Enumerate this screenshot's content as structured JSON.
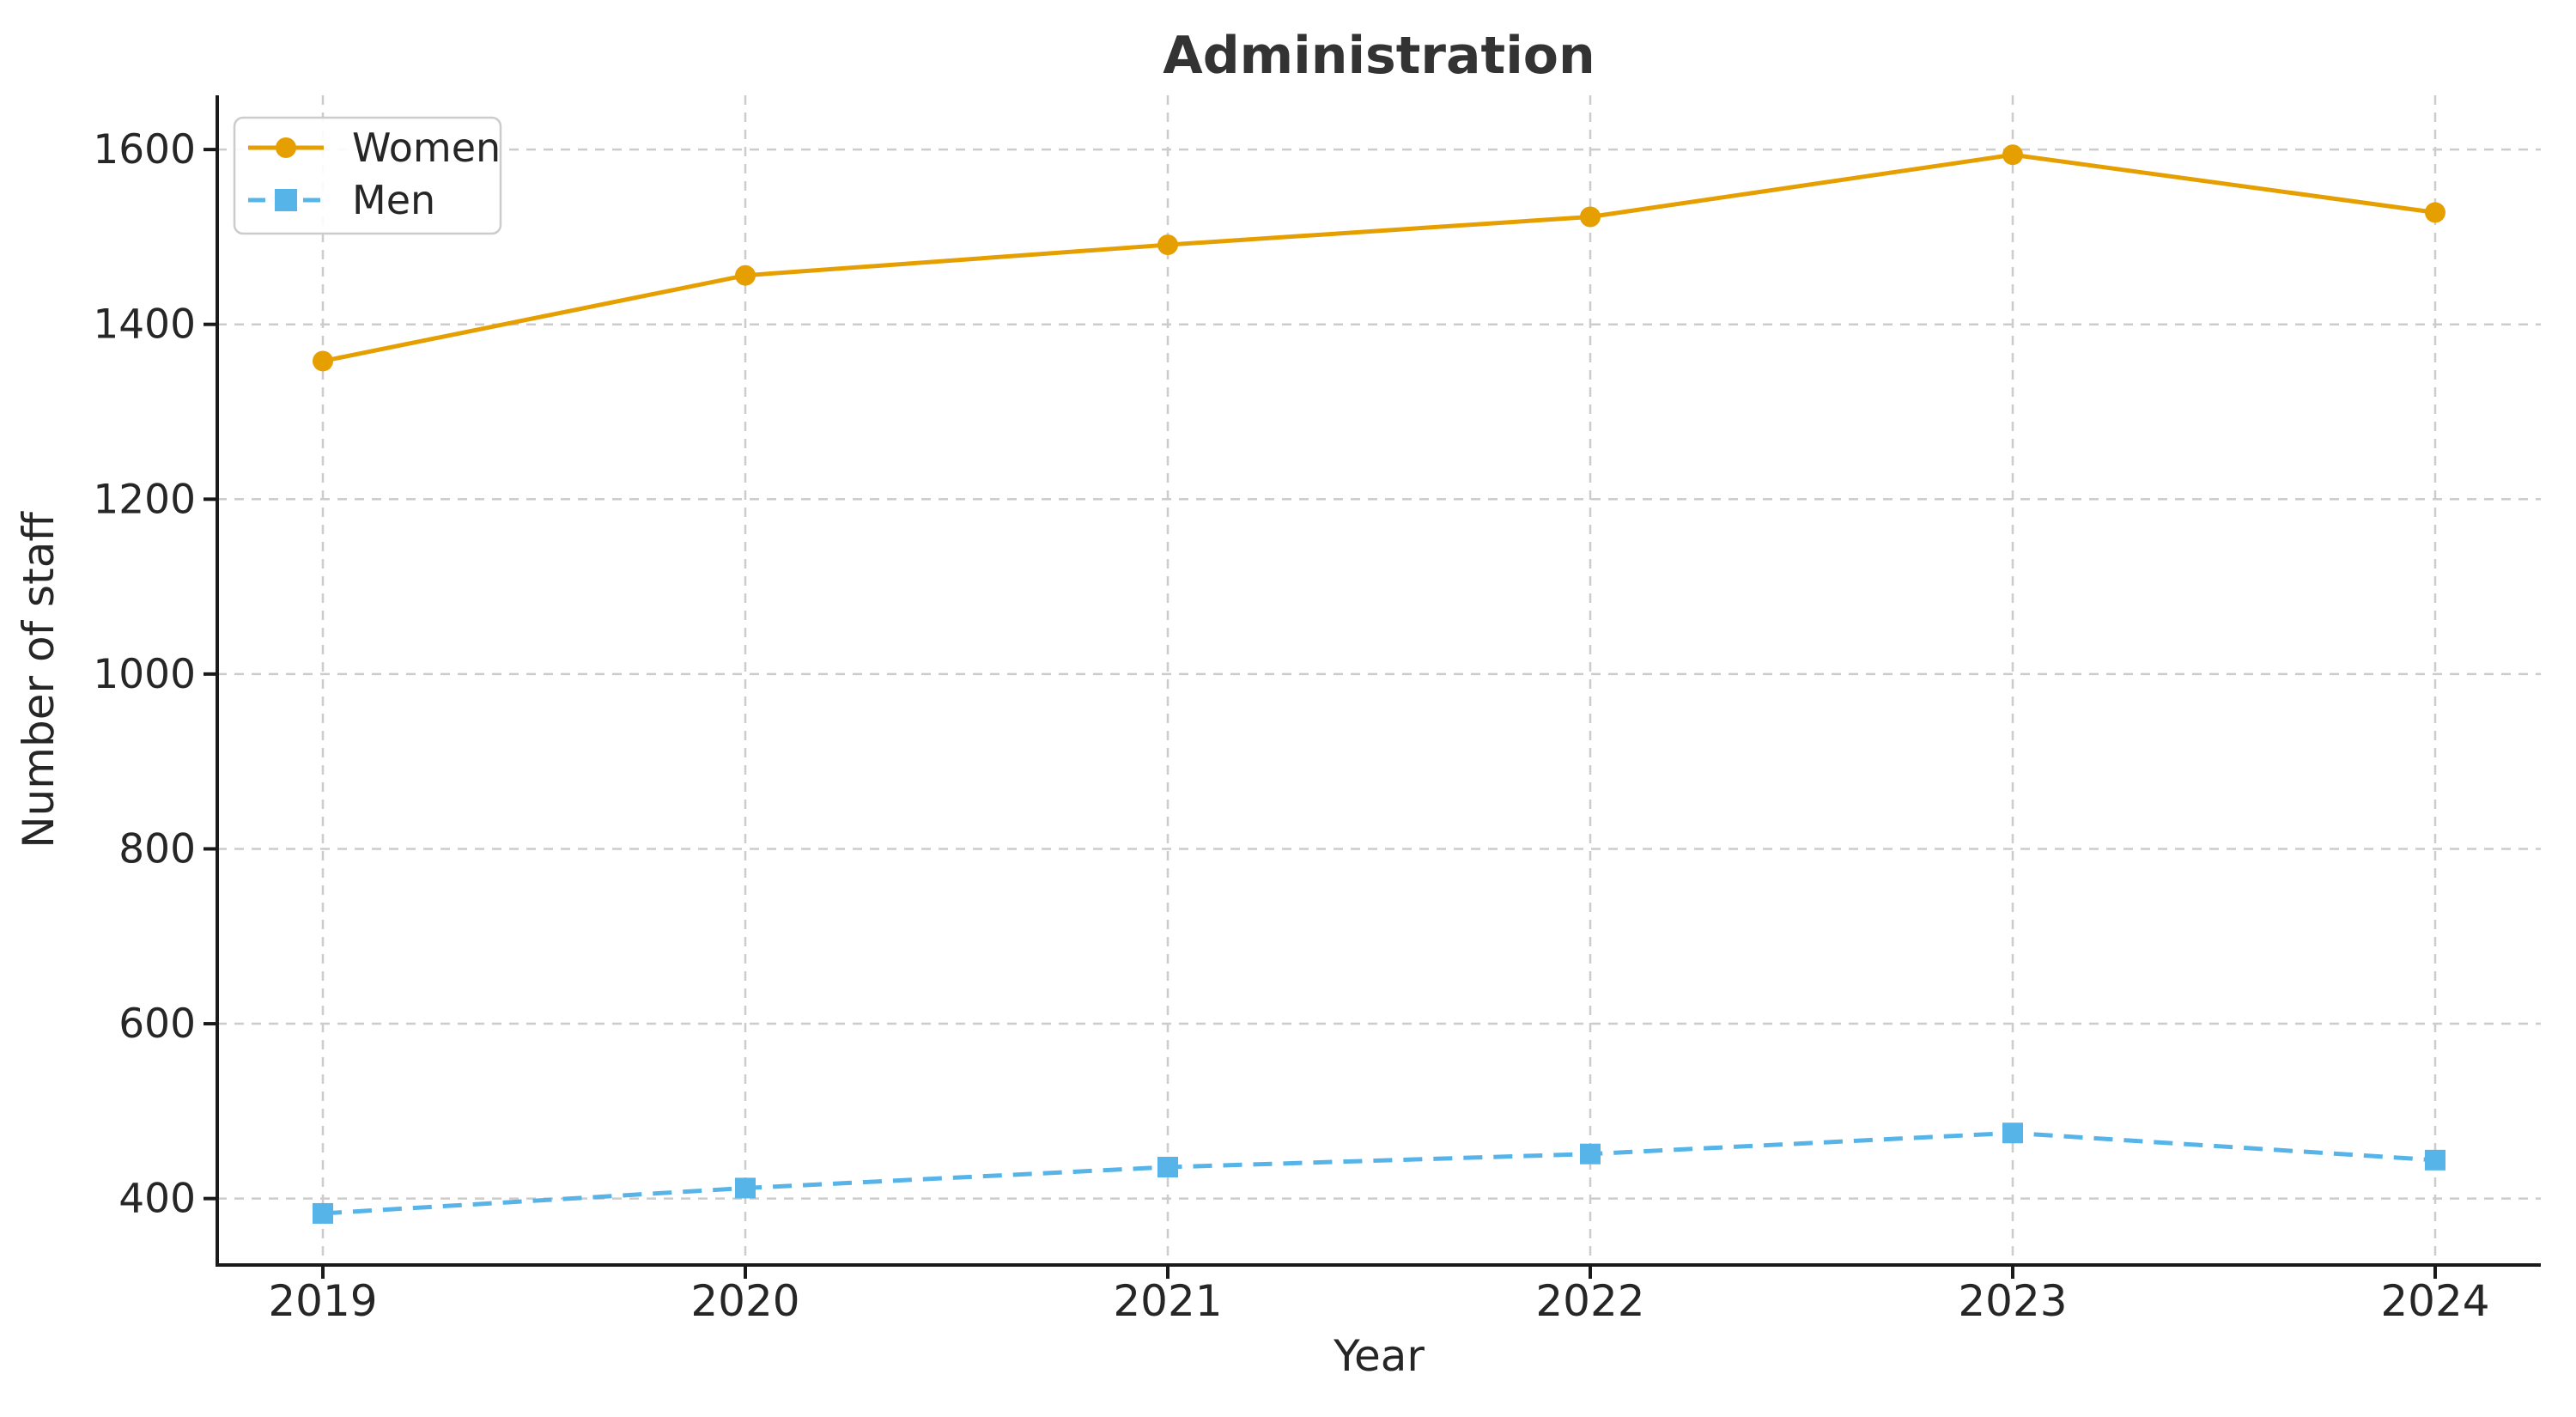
{
  "chart_data": {
    "type": "line",
    "title": "Administration",
    "xlabel": "Year",
    "ylabel": "Number of staff",
    "categories": [
      "2019",
      "2020",
      "2021",
      "2022",
      "2023",
      "2024"
    ],
    "x_values": [
      2019,
      2020,
      2021,
      2022,
      2023,
      2024
    ],
    "series": [
      {
        "name": "Women",
        "values": [
          1358,
          1456,
          1491,
          1523,
          1594,
          1528
        ],
        "color": "#E69F00",
        "marker": "circle",
        "line_style": "solid"
      },
      {
        "name": "Men",
        "values": [
          383,
          412,
          436,
          451,
          475,
          444
        ],
        "color": "#56B4E9",
        "marker": "square",
        "line_style": "dashed"
      }
    ],
    "yticks": [
      400,
      600,
      800,
      1000,
      1200,
      1400,
      1600
    ],
    "ylim": [
      324,
      1662
    ],
    "grid": true,
    "legend_position": "upper left",
    "colors": {
      "grid": "#cccccc",
      "spine": "#1a1a1a",
      "tick_label": "#262626",
      "title": "#333333",
      "background": "#ffffff",
      "legend_border": "#cccccc"
    }
  }
}
